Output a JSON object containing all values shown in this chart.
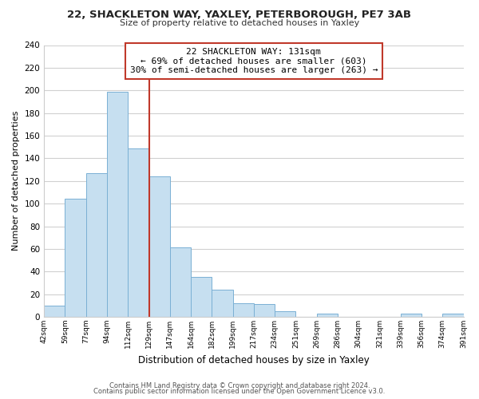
{
  "title_line1": "22, SHACKLETON WAY, YAXLEY, PETERBOROUGH, PE7 3AB",
  "title_line2": "Size of property relative to detached houses in Yaxley",
  "xlabel": "Distribution of detached houses by size in Yaxley",
  "ylabel": "Number of detached properties",
  "footer_line1": "Contains HM Land Registry data © Crown copyright and database right 2024.",
  "footer_line2": "Contains public sector information licensed under the Open Government Licence v3.0.",
  "bin_labels": [
    "42sqm",
    "59sqm",
    "77sqm",
    "94sqm",
    "112sqm",
    "129sqm",
    "147sqm",
    "164sqm",
    "182sqm",
    "199sqm",
    "217sqm",
    "234sqm",
    "251sqm",
    "269sqm",
    "286sqm",
    "304sqm",
    "321sqm",
    "339sqm",
    "356sqm",
    "374sqm",
    "391sqm"
  ],
  "bin_values": [
    10,
    104,
    127,
    199,
    149,
    124,
    61,
    35,
    24,
    12,
    11,
    5,
    0,
    3,
    0,
    0,
    0,
    3,
    0,
    3
  ],
  "bar_color": "#c6dff0",
  "bar_edge_color": "#7ab0d4",
  "grid_color": "#d0d0d0",
  "property_label": "22 SHACKLETON WAY: 131sqm",
  "annotation_line1": "← 69% of detached houses are smaller (603)",
  "annotation_line2": "30% of semi-detached houses are larger (263) →",
  "vline_color": "#c0392b",
  "annotation_box_edge_color": "#c0392b",
  "ylim": [
    0,
    240
  ],
  "vline_x": 5,
  "background_color": "#ffffff"
}
